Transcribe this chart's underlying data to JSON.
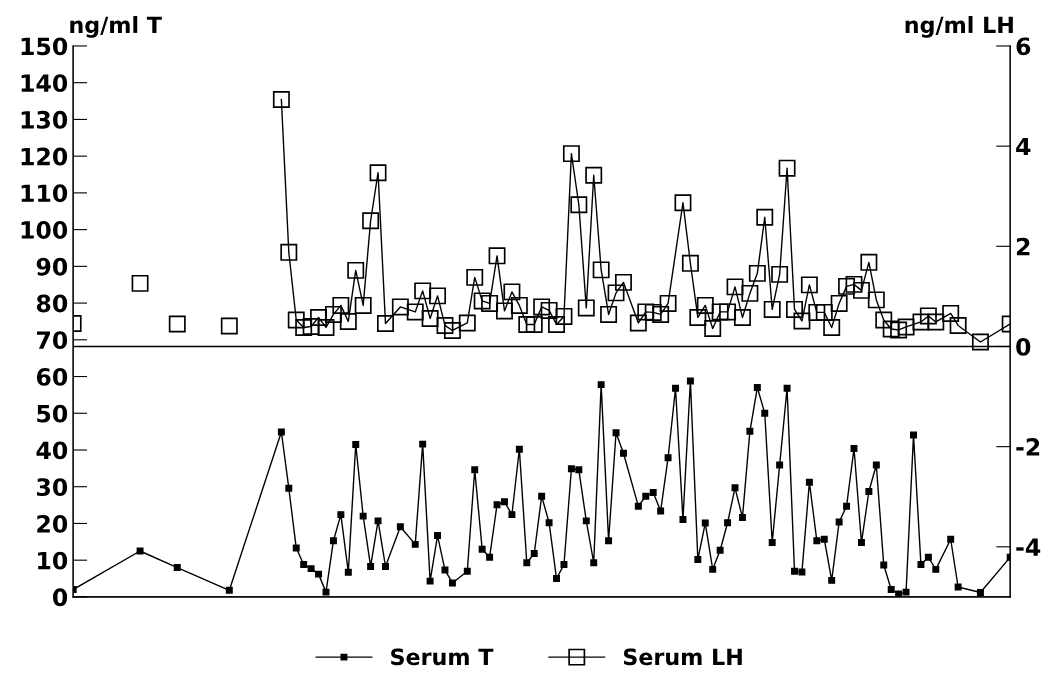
{
  "chart_data": {
    "type": "line",
    "ylabel": "ng/ml T",
    "y2label": "ng/ml LH",
    "categories": [
      null,
      null,
      null,
      null,
      null,
      null,
      null,
      null,
      null,
      null,
      null,
      null,
      null,
      null,
      null,
      null,
      null,
      null,
      null,
      null,
      null,
      null,
      null,
      null,
      null,
      null,
      null,
      null,
      null,
      null,
      null,
      null,
      null,
      null,
      null,
      null,
      null,
      null,
      null,
      null,
      null,
      null,
      null,
      null,
      null,
      null,
      null,
      null,
      null,
      null,
      null,
      null,
      null,
      null,
      null,
      null,
      null,
      null,
      null,
      null,
      null,
      null,
      null,
      null,
      null,
      null,
      null,
      null,
      null,
      null,
      null,
      null,
      null,
      null,
      null,
      null,
      null,
      null,
      null,
      null,
      null,
      null,
      null,
      null,
      null,
      null,
      null,
      null,
      null,
      null,
      null,
      null,
      null,
      null,
      null,
      null,
      null,
      null,
      null,
      null,
      null,
      null,
      null,
      null,
      null,
      null,
      null,
      null,
      null,
      null,
      null,
      null,
      null,
      null,
      null,
      null,
      null,
      null,
      null,
      null,
      null,
      null,
      null,
      null,
      null,
      null,
      null
    ],
    "ylim": [
      0,
      150
    ],
    "yticks": [
      0,
      10,
      20,
      30,
      40,
      50,
      60,
      70,
      80,
      90,
      100,
      110,
      120,
      130,
      140,
      150
    ],
    "y2lim": [
      -5,
      6
    ],
    "y2ticks": [
      -4,
      -2,
      0,
      2,
      4,
      6
    ],
    "tick_labels": "y",
    "legend": "bottom",
    "marker": "square",
    "line_style": "solid",
    "ref_lines": [
      {
        "axis": "y2",
        "value": 0,
        "color": "#000000"
      }
    ],
    "series": [
      {
        "name": "Serum T",
        "color": "#000000",
        "values": [
          2.0,
          null,
          null,
          null,
          null,
          null,
          null,
          null,
          null,
          12.5,
          null,
          null,
          null,
          null,
          8.0,
          null,
          null,
          null,
          null,
          null,
          null,
          1.8,
          null,
          null,
          null,
          null,
          null,
          null,
          44.9,
          29.6,
          13.3,
          8.8,
          7.7,
          6.2,
          1.3,
          15.3,
          22.4,
          6.7,
          41.5,
          22.0,
          8.3,
          20.7,
          8.3,
          null,
          19.1,
          null,
          14.3,
          41.6,
          4.3,
          16.7,
          7.3,
          3.8,
          null,
          7.0,
          34.6,
          13.0,
          10.8,
          25.1,
          25.9,
          22.4,
          40.2,
          9.3,
          11.8,
          27.4,
          20.2,
          5.0,
          8.8,
          34.9,
          34.6,
          20.7,
          9.3,
          57.8,
          15.3,
          44.7,
          39.1,
          null,
          24.7,
          27.4,
          28.4,
          23.4,
          37.9,
          56.8,
          21.1,
          58.8,
          10.2,
          20.1,
          7.5,
          12.7,
          20.2,
          29.7,
          21.6,
          45.1,
          57.0,
          50.0,
          14.8,
          35.9,
          56.8,
          7.0,
          6.8,
          31.2,
          15.3,
          15.7,
          4.5,
          20.4,
          24.7,
          40.4,
          14.8,
          28.7,
          35.9,
          8.7,
          2.0,
          0.8,
          1.3,
          44.1,
          8.8,
          10.8,
          7.5,
          null,
          15.7,
          2.7,
          null,
          null,
          1.2,
          null,
          null,
          null,
          10.8
        ]
      },
      {
        "name": "Serum LH",
        "color": "#000000",
        "axis": "y2",
        "values": [
          null,
          null,
          null,
          null,
          null,
          null,
          null,
          null,
          null,
          null,
          null,
          null,
          null,
          null,
          null,
          null,
          null,
          null,
          null,
          null,
          null,
          null,
          null,
          null,
          null,
          null,
          null,
          null,
          4.93,
          1.88,
          0.53,
          0.38,
          0.4,
          0.58,
          0.38,
          0.64,
          0.82,
          0.5,
          1.52,
          0.82,
          2.51,
          3.47,
          0.46,
          null,
          0.79,
          null,
          0.69,
          1.11,
          0.56,
          1.01,
          0.42,
          0.32,
          null,
          0.47,
          1.38,
          0.91,
          0.86,
          1.81,
          0.71,
          1.09,
          0.82,
          0.44,
          0.44,
          0.79,
          0.72,
          0.44,
          0.6,
          3.85,
          2.83,
          0.77,
          3.42,
          1.53,
          0.64,
          1.07,
          1.28,
          null,
          0.47,
          0.69,
          0.68,
          0.64,
          0.86,
          null,
          2.87,
          1.66,
          0.58,
          0.82,
          0.36,
          0.69,
          0.69,
          1.19,
          0.58,
          1.06,
          1.46,
          2.58,
          0.74,
          1.44,
          3.56,
          0.74,
          0.51,
          1.23,
          0.68,
          0.68,
          0.38,
          0.86,
          1.2,
          1.24,
          1.12,
          1.68,
          0.93,
          0.53,
          0.35,
          0.33,
          0.39,
          null,
          0.49,
          0.61,
          0.49,
          null,
          0.66,
          0.42,
          null,
          null,
          0.09,
          null,
          null,
          null,
          0.45
        ]
      },
      {
        "type": "scatter",
        "color": "#000000",
        "axis": "y2",
        "values": [
          0.46,
          null,
          null,
          null,
          null,
          null,
          null,
          null,
          null,
          1.26,
          null,
          null,
          null,
          null,
          0.45,
          null,
          null,
          null,
          null,
          null,
          null,
          0.41,
          null,
          null,
          null,
          null,
          null,
          null,
          null,
          null,
          null,
          null,
          null,
          null,
          null,
          null,
          null,
          null,
          null,
          null,
          null,
          null,
          null,
          null,
          null,
          null,
          null,
          null,
          null,
          null,
          null,
          null,
          null,
          null,
          null,
          null,
          null,
          null,
          null,
          null,
          null,
          null,
          null,
          null,
          null,
          null,
          null,
          null,
          null,
          null,
          null,
          null,
          null,
          null,
          null,
          null,
          null,
          null,
          null,
          null,
          null,
          null,
          null,
          null,
          null,
          null,
          null,
          null,
          null,
          null,
          null,
          null,
          null,
          null,
          null,
          null,
          null,
          null,
          null,
          null,
          null,
          null,
          null,
          null,
          null,
          null,
          null,
          null,
          null,
          null,
          null,
          null,
          null,
          null,
          null,
          null,
          null,
          null,
          null,
          null,
          null,
          null,
          null,
          null,
          null,
          null,
          null
        ]
      }
    ]
  }
}
